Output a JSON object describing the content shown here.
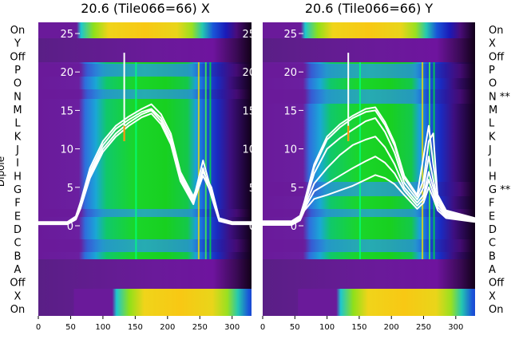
{
  "chart_data": [
    {
      "type": "heatmap",
      "title": "20.6 (Tile066=66) X",
      "ylabel": "Dipole",
      "xlim": [
        0,
        330
      ],
      "x_ticks": [
        0,
        50,
        100,
        150,
        200,
        250,
        300
      ],
      "y_ticks": [
        0,
        5,
        10,
        15,
        20,
        25
      ],
      "row_labels": [
        "On",
        "Y",
        "Off",
        "P",
        "O",
        "N",
        "M",
        "L",
        "K",
        "J",
        "I",
        "H",
        "G",
        "F",
        "E",
        "D",
        "C",
        "B",
        "A",
        "Off",
        "X",
        "On"
      ],
      "band_edges": [
        48,
        62,
        73,
        325,
        345,
        376
      ],
      "line_profiles": [
        {
          "x": [
            0,
            45,
            58,
            65,
            80,
            100,
            120,
            140,
            160,
            175,
            190,
            205,
            220,
            240,
            255,
            268,
            280,
            300,
            330
          ],
          "y": [
            0.5,
            0.5,
            1.2,
            3,
            7.5,
            11,
            13,
            14.2,
            15.2,
            15.8,
            14.5,
            12,
            7,
            3.8,
            7,
            5,
            1,
            0.5,
            0.5
          ]
        },
        {
          "x": [
            0,
            45,
            58,
            65,
            80,
            100,
            120,
            140,
            160,
            175,
            190,
            205,
            220,
            240,
            255,
            268,
            280,
            300,
            330
          ],
          "y": [
            0.4,
            0.4,
            1,
            2.6,
            7,
            10.5,
            12.6,
            13.8,
            14.8,
            15.2,
            14,
            11.5,
            6.6,
            3.4,
            8.5,
            4.5,
            0.8,
            0.4,
            0.4
          ]
        },
        {
          "x": [
            0,
            45,
            58,
            65,
            80,
            100,
            120,
            140,
            160,
            175,
            190,
            205,
            220,
            240,
            255,
            268,
            280,
            300,
            330
          ],
          "y": [
            0.3,
            0.3,
            0.9,
            2.4,
            6.6,
            10,
            12,
            13.4,
            14.5,
            15,
            13.6,
            11,
            6.2,
            3,
            6.5,
            4.2,
            0.7,
            0.3,
            0.3
          ]
        },
        {
          "x": [
            0,
            45,
            58,
            65,
            80,
            100,
            120,
            140,
            160,
            175,
            190,
            205,
            220,
            240,
            255,
            268,
            280,
            300,
            330
          ],
          "y": [
            0.2,
            0.2,
            0.8,
            2.2,
            6.2,
            9.6,
            11.6,
            13,
            14.1,
            14.6,
            13.2,
            10.6,
            5.8,
            2.8,
            7.5,
            3.8,
            0.6,
            0.2,
            0.2
          ]
        }
      ]
    },
    {
      "type": "heatmap",
      "title": "20.6 (Tile066=66) Y",
      "xlim": [
        0,
        330
      ],
      "x_ticks": [
        0,
        50,
        100,
        150,
        200,
        250,
        300
      ],
      "y_ticks": [
        0,
        5,
        10,
        15,
        20,
        25
      ],
      "row_labels": [
        "On",
        "X",
        "Off",
        "P",
        "O",
        "N **",
        "M",
        "L",
        "K",
        "J",
        "I",
        "H",
        "G **",
        "F",
        "E",
        "D",
        "C",
        "B",
        "A",
        "Off",
        "X",
        "On"
      ],
      "band_edges": [
        48,
        62,
        73,
        325,
        345,
        376
      ],
      "line_profiles": [
        {
          "x": [
            0,
            45,
            58,
            65,
            80,
            100,
            120,
            140,
            160,
            175,
            190,
            205,
            220,
            240,
            250,
            258,
            265,
            272,
            285,
            330
          ],
          "y": [
            0.6,
            0.6,
            1.3,
            3.2,
            8,
            11.6,
            13.2,
            14.3,
            15.2,
            15.4,
            13.5,
            10.8,
            6.5,
            4,
            9,
            13,
            8,
            4,
            2,
            1
          ]
        },
        {
          "x": [
            0,
            45,
            58,
            65,
            80,
            100,
            120,
            140,
            160,
            175,
            190,
            205,
            220,
            240,
            250,
            258,
            265,
            272,
            285,
            330
          ],
          "y": [
            0.5,
            0.5,
            1.1,
            3,
            7.6,
            11.2,
            12.8,
            14,
            14.8,
            15,
            13.1,
            10.4,
            6.2,
            3.8,
            6,
            11,
            12,
            3.6,
            1.8,
            0.9
          ]
        },
        {
          "x": [
            0,
            45,
            58,
            65,
            80,
            100,
            120,
            140,
            160,
            175,
            190,
            205,
            220,
            240,
            250,
            258,
            265,
            272,
            285,
            330
          ],
          "y": [
            0.4,
            0.4,
            1,
            2.7,
            6.8,
            10,
            11.4,
            12.5,
            13.6,
            14,
            12.2,
            9.5,
            5.6,
            3.4,
            5,
            9,
            6,
            3.2,
            1.6,
            0.8
          ]
        },
        {
          "x": [
            0,
            45,
            58,
            65,
            80,
            100,
            120,
            140,
            160,
            175,
            190,
            205,
            220,
            240,
            250,
            258,
            265,
            272,
            285,
            330
          ],
          "y": [
            0.3,
            0.3,
            0.9,
            2.4,
            5.5,
            7.5,
            9.2,
            10.5,
            11.2,
            11.6,
            10.2,
            8,
            5,
            3,
            4,
            7,
            5,
            2.8,
            1.4,
            0.7
          ]
        },
        {
          "x": [
            0,
            45,
            58,
            65,
            80,
            100,
            120,
            140,
            160,
            175,
            190,
            205,
            220,
            240,
            250,
            258,
            265,
            272,
            285,
            330
          ],
          "y": [
            0.2,
            0.2,
            0.8,
            2.2,
            4.5,
            5.5,
            6.5,
            7.5,
            8.4,
            9,
            8.2,
            6.8,
            4.6,
            2.6,
            3.5,
            6,
            4.2,
            2.4,
            1.2,
            0.6
          ]
        },
        {
          "x": [
            0,
            45,
            58,
            65,
            80,
            100,
            120,
            140,
            160,
            175,
            190,
            205,
            220,
            240,
            250,
            258,
            265,
            272,
            285,
            330
          ],
          "y": [
            0.1,
            0.1,
            0.7,
            2,
            3.5,
            4,
            4.6,
            5.2,
            6,
            6.6,
            6.2,
            5.4,
            4,
            2.2,
            3,
            5,
            3.6,
            2,
            1,
            0.5
          ]
        }
      ]
    }
  ]
}
